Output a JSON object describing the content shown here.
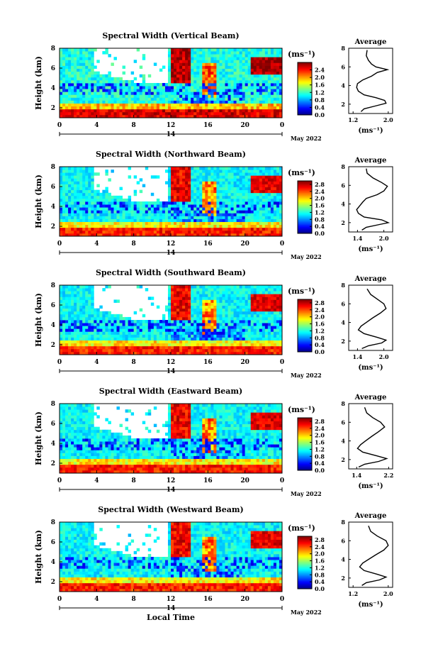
{
  "chart_data": [
    {
      "type": "heatmap",
      "title": "Spectral Width (Vertical Beam)",
      "ylabel": "Height (km)",
      "xticks": [
        "0",
        "4",
        "8",
        "12",
        "16",
        "20",
        "0"
      ],
      "yticks": [
        "2",
        "4",
        "6",
        "8"
      ],
      "day_label": "14",
      "date_label": "May 2022",
      "xlim": [
        0,
        24
      ],
      "ylim": [
        1,
        8
      ],
      "colorbar": {
        "unit": "(ms⁻¹)",
        "ticks": [
          "0.0",
          "0.4",
          "0.8",
          "1.2",
          "1.6",
          "2.0",
          "2.4"
        ],
        "range": [
          0,
          2.8
        ]
      },
      "profile": {
        "title": "Average",
        "xlabel": "(ms⁻¹)",
        "xticks": [
          "1.2",
          "2.0"
        ],
        "xlim": [
          1.1,
          2.1
        ],
        "yticks": [
          "2",
          "4",
          "6",
          "8"
        ],
        "ylim": [
          1,
          8
        ],
        "points": [
          [
            1.38,
            1.2
          ],
          [
            1.45,
            1.5
          ],
          [
            1.7,
            1.8
          ],
          [
            1.95,
            2.1
          ],
          [
            1.92,
            2.4
          ],
          [
            1.72,
            2.7
          ],
          [
            1.45,
            3.0
          ],
          [
            1.32,
            3.4
          ],
          [
            1.28,
            3.8
          ],
          [
            1.3,
            4.2
          ],
          [
            1.42,
            4.6
          ],
          [
            1.62,
            5.0
          ],
          [
            1.75,
            5.4
          ],
          [
            1.98,
            5.7
          ],
          [
            1.72,
            6.0
          ],
          [
            1.62,
            6.3
          ],
          [
            1.55,
            6.7
          ],
          [
            1.5,
            7.2
          ],
          [
            1.52,
            7.8
          ]
        ]
      }
    },
    {
      "type": "heatmap",
      "title": "Spectral Width (Northward Beam)",
      "ylabel": "Height (km)",
      "xticks": [
        "0",
        "4",
        "8",
        "12",
        "16",
        "20",
        "0"
      ],
      "yticks": [
        "2",
        "4",
        "6",
        "8"
      ],
      "day_label": "14",
      "date_label": "May 2022",
      "xlim": [
        0,
        24
      ],
      "ylim": [
        1,
        8
      ],
      "colorbar": {
        "unit": "(ms⁻¹)",
        "ticks": [
          "0.0",
          "0.4",
          "0.8",
          "1.2",
          "1.6",
          "2.0",
          "2.4",
          "2.8"
        ],
        "range": [
          0,
          3.0
        ]
      },
      "profile": {
        "title": "Average",
        "xlabel": "(ms⁻¹)",
        "xticks": [
          "1.4",
          "2.0"
        ],
        "xlim": [
          1.2,
          2.2
        ],
        "yticks": [
          "2",
          "4",
          "6",
          "8"
        ],
        "ylim": [
          1,
          8
        ],
        "points": [
          [
            1.5,
            1.2
          ],
          [
            1.6,
            1.5
          ],
          [
            1.9,
            1.8
          ],
          [
            2.1,
            2.0
          ],
          [
            1.95,
            2.3
          ],
          [
            1.55,
            2.6
          ],
          [
            1.42,
            3.0
          ],
          [
            1.38,
            3.4
          ],
          [
            1.45,
            3.8
          ],
          [
            1.52,
            4.2
          ],
          [
            1.6,
            4.6
          ],
          [
            1.85,
            5.0
          ],
          [
            2.0,
            5.4
          ],
          [
            2.08,
            5.9
          ],
          [
            1.95,
            6.3
          ],
          [
            1.75,
            6.8
          ],
          [
            1.62,
            7.3
          ],
          [
            1.6,
            7.8
          ]
        ]
      }
    },
    {
      "type": "heatmap",
      "title": "Spectral Width (Southward Beam)",
      "ylabel": "Height (km)",
      "xticks": [
        "0",
        "4",
        "8",
        "12",
        "16",
        "20",
        "0"
      ],
      "yticks": [
        "2",
        "4",
        "6",
        "8"
      ],
      "day_label": "14",
      "date_label": "May 2022",
      "xlim": [
        0,
        24
      ],
      "ylim": [
        1,
        8
      ],
      "colorbar": {
        "unit": "(ms⁻¹)",
        "ticks": [
          "0.0",
          "0.4",
          "0.8",
          "1.2",
          "1.6",
          "2.0",
          "2.4",
          "2.8"
        ],
        "range": [
          0,
          3.0
        ]
      },
      "profile": {
        "title": "Average",
        "xlabel": "(ms⁻¹)",
        "xticks": [
          "1.4",
          "2.0"
        ],
        "xlim": [
          1.2,
          2.2
        ],
        "yticks": [
          "2",
          "4",
          "6",
          "8"
        ],
        "ylim": [
          1,
          8
        ],
        "points": [
          [
            1.5,
            1.2
          ],
          [
            1.65,
            1.5
          ],
          [
            1.95,
            1.8
          ],
          [
            2.05,
            2.1
          ],
          [
            1.85,
            2.4
          ],
          [
            1.55,
            2.8
          ],
          [
            1.42,
            3.2
          ],
          [
            1.48,
            3.6
          ],
          [
            1.6,
            4.0
          ],
          [
            1.75,
            4.5
          ],
          [
            1.92,
            5.0
          ],
          [
            2.05,
            5.5
          ],
          [
            2.0,
            6.0
          ],
          [
            1.85,
            6.5
          ],
          [
            1.7,
            7.0
          ],
          [
            1.62,
            7.6
          ]
        ]
      }
    },
    {
      "type": "heatmap",
      "title": "Spectral Width (Eastward Beam)",
      "ylabel": "Height (km)",
      "xticks": [
        "0",
        "4",
        "8",
        "12",
        "16",
        "20",
        "0"
      ],
      "yticks": [
        "2",
        "4",
        "6",
        "8"
      ],
      "day_label": "14",
      "date_label": "May 2022",
      "xlim": [
        0,
        24
      ],
      "ylim": [
        1,
        8
      ],
      "colorbar": {
        "unit": "(ms⁻¹)",
        "ticks": [
          "0.0",
          "0.4",
          "0.8",
          "1.2",
          "1.6",
          "2.0",
          "2.4",
          "2.8"
        ],
        "range": [
          0,
          3.0
        ]
      },
      "profile": {
        "title": "Average",
        "xlabel": "(ms⁻¹)",
        "xticks": [
          "1.4",
          "2.2"
        ],
        "xlim": [
          1.2,
          2.3
        ],
        "yticks": [
          "2",
          "4",
          "6",
          "8"
        ],
        "ylim": [
          1,
          8
        ],
        "points": [
          [
            1.45,
            1.2
          ],
          [
            1.6,
            1.5
          ],
          [
            1.95,
            1.8
          ],
          [
            2.15,
            2.1
          ],
          [
            1.9,
            2.4
          ],
          [
            1.55,
            2.8
          ],
          [
            1.42,
            3.2
          ],
          [
            1.5,
            3.6
          ],
          [
            1.62,
            4.0
          ],
          [
            1.78,
            4.5
          ],
          [
            1.95,
            5.0
          ],
          [
            2.1,
            5.5
          ],
          [
            2.0,
            6.0
          ],
          [
            1.8,
            6.5
          ],
          [
            1.65,
            7.0
          ],
          [
            1.6,
            7.6
          ]
        ]
      }
    },
    {
      "type": "heatmap",
      "title": "Spectral Width (Westward Beam)",
      "ylabel": "Height (km)",
      "xticks": [
        "0",
        "4",
        "8",
        "12",
        "16",
        "20",
        "0"
      ],
      "yticks": [
        "2",
        "4",
        "6",
        "8"
      ],
      "day_label": "14",
      "date_label": "May 2022",
      "xlabel": "Local Time",
      "xlim": [
        0,
        24
      ],
      "ylim": [
        1,
        8
      ],
      "colorbar": {
        "unit": "(ms⁻¹)",
        "ticks": [
          "0.0",
          "0.4",
          "0.8",
          "1.2",
          "1.6",
          "2.0",
          "2.4",
          "2.8"
        ],
        "range": [
          0,
          3.0
        ]
      },
      "profile": {
        "title": "Average",
        "xlabel": "(ms⁻¹)",
        "xticks": [
          "1.2",
          "2.0"
        ],
        "xlim": [
          1.1,
          2.1
        ],
        "yticks": [
          "2",
          "4",
          "6",
          "8"
        ],
        "ylim": [
          1,
          8
        ],
        "points": [
          [
            1.4,
            1.2
          ],
          [
            1.5,
            1.5
          ],
          [
            1.8,
            1.8
          ],
          [
            1.95,
            2.1
          ],
          [
            1.75,
            2.4
          ],
          [
            1.45,
            2.8
          ],
          [
            1.35,
            3.2
          ],
          [
            1.42,
            3.6
          ],
          [
            1.55,
            4.0
          ],
          [
            1.72,
            4.5
          ],
          [
            1.9,
            5.0
          ],
          [
            2.0,
            5.5
          ],
          [
            1.95,
            6.0
          ],
          [
            1.75,
            6.5
          ],
          [
            1.6,
            7.0
          ],
          [
            1.55,
            7.6
          ]
        ]
      }
    }
  ]
}
